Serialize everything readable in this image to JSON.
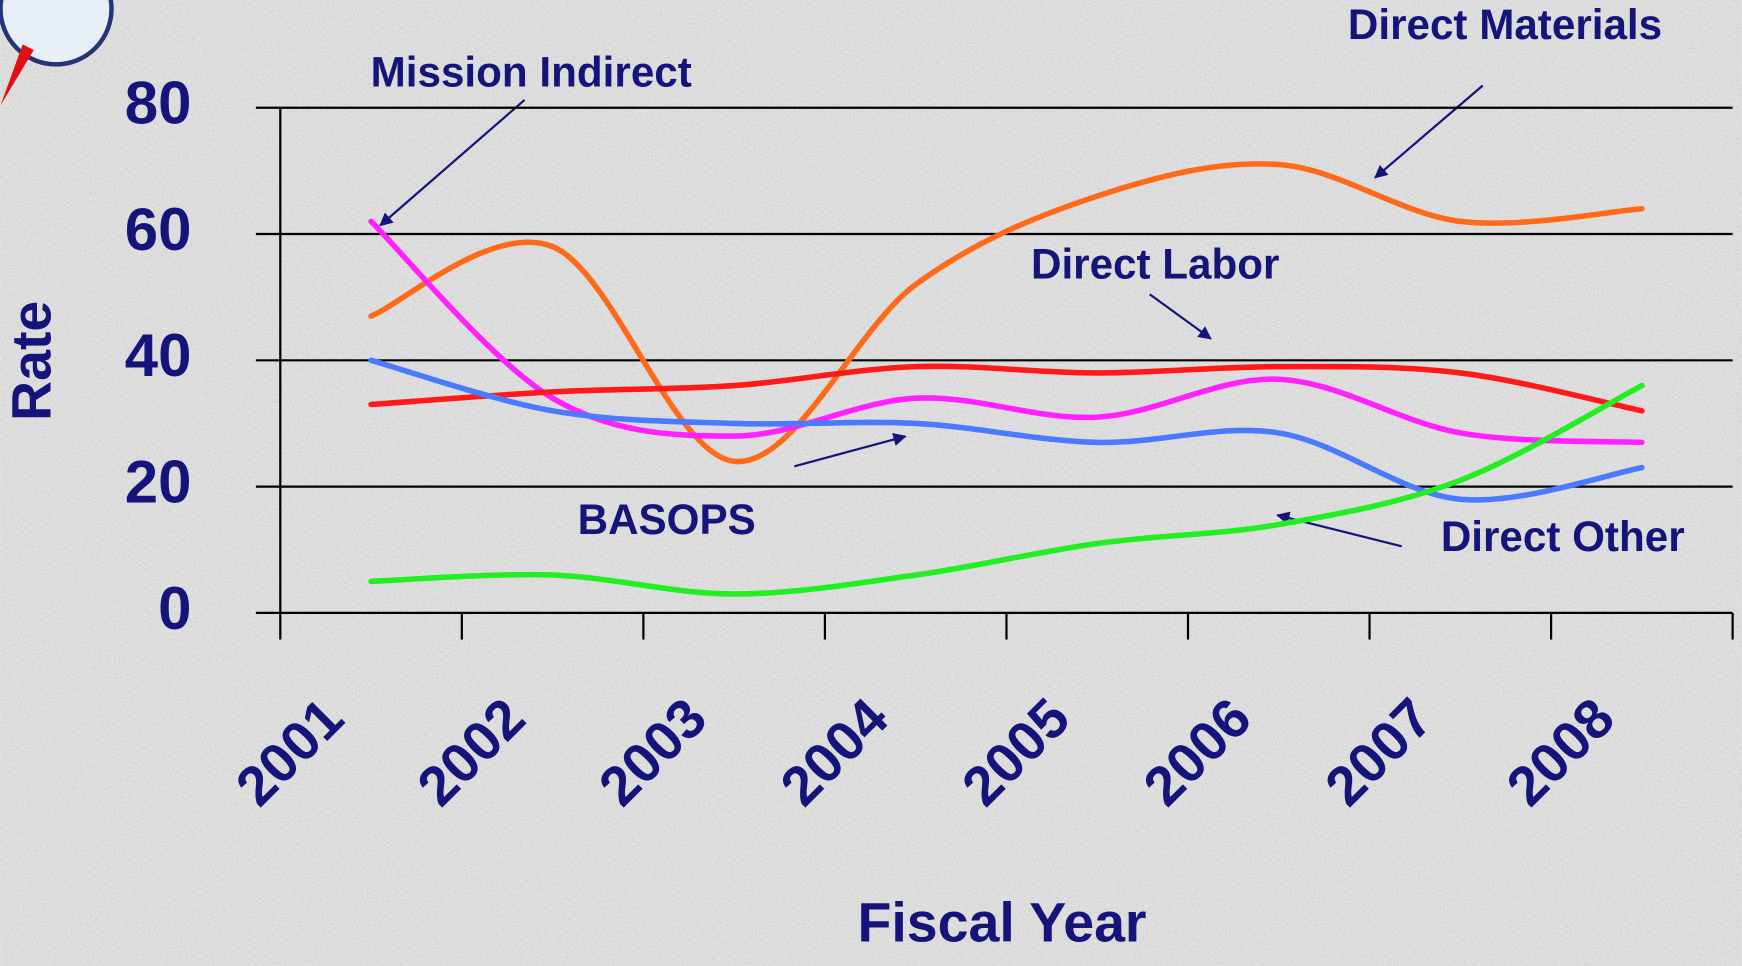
{
  "chart_data": {
    "type": "line",
    "x_label": "Fiscal Year",
    "y_label": "Rate",
    "categories": [
      "2001",
      "2002",
      "2003",
      "2004",
      "2005",
      "2006",
      "2007",
      "2008"
    ],
    "series": [
      {
        "name": "Direct Materials",
        "color": "#ff6a1a",
        "values": [
          47,
          58,
          24,
          52,
          66,
          71,
          62,
          64
        ]
      },
      {
        "name": "Mission Indirect",
        "color": "#ff22ff",
        "values": [
          62,
          34,
          28,
          34,
          31,
          37,
          28.5,
          27
        ]
      },
      {
        "name": "Direct Labor",
        "color": "#ff1a1a",
        "values": [
          33,
          35,
          36,
          39,
          38,
          39,
          38,
          32
        ]
      },
      {
        "name": "BASOPS",
        "color": "#4a7aff",
        "values": [
          40,
          32,
          30,
          30,
          27,
          28.5,
          18,
          23
        ]
      },
      {
        "name": "Direct Other",
        "color": "#22ee22",
        "values": [
          5,
          6,
          3,
          6,
          11,
          14,
          21,
          36
        ]
      }
    ],
    "ylim": [
      0,
      80
    ],
    "yticks": [
      0,
      20,
      40,
      60,
      80
    ],
    "grid": true
  }
}
